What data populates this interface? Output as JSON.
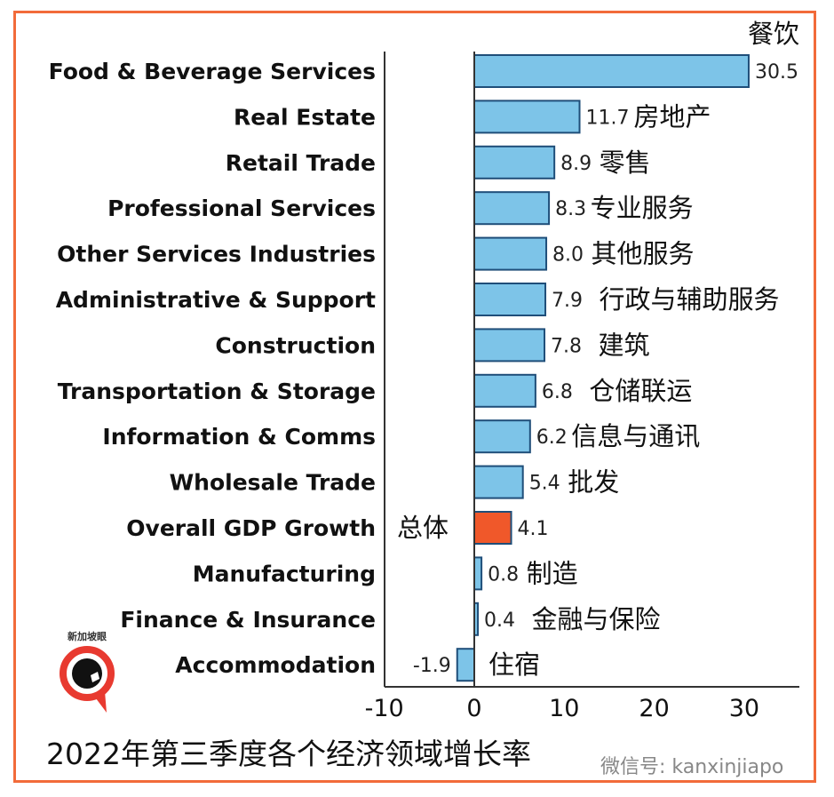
{
  "chart_data": {
    "type": "bar",
    "orientation": "horizontal",
    "title": "2022年第三季度各个经济领域增长率",
    "categories": [
      "Food & Beverage Services",
      "Real Estate",
      "Retail Trade",
      "Professional Services",
      "Other Services Industries",
      "Administrative & Support",
      "Construction",
      "Transportation & Storage",
      "Information & Comms",
      "Wholesale Trade",
      "Overall GDP Growth",
      "Manufacturing",
      "Finance & Insurance",
      "Accommodation"
    ],
    "categories_zh": [
      "餐饮",
      "房地产",
      "零售",
      "专业服务",
      "其他服务",
      "行政与辅助服务",
      "建筑",
      "仓储联运",
      "信息与通讯",
      "批发",
      "总体",
      "制造",
      "金融与保险",
      "住宿"
    ],
    "values": [
      30.5,
      11.7,
      8.9,
      8.3,
      8.0,
      7.9,
      7.8,
      6.8,
      6.2,
      5.4,
      4.1,
      0.8,
      0.4,
      -1.9
    ],
    "value_labels": [
      "30.5",
      "11.7",
      "8.9",
      "8.3",
      "8.0",
      "7.9",
      "7.8",
      "6.8",
      "6.2",
      "5.4",
      "4.1",
      "0.8",
      "0.4",
      "-1.9"
    ],
    "highlight_index": 10,
    "xlim": [
      -10,
      36
    ],
    "xticks": [
      -10,
      0,
      10,
      20,
      30
    ],
    "xtick_labels": [
      "-10",
      "0",
      "10",
      "20",
      "30"
    ],
    "grid": false,
    "colors": {
      "bar": "#7dc4e8",
      "bar_edge": "#1f4e79",
      "highlight": "#f0582a",
      "border": "#f26b3a"
    }
  },
  "watermark": "微信号: kanxinjiapo",
  "logo_text": "新加坡眼"
}
